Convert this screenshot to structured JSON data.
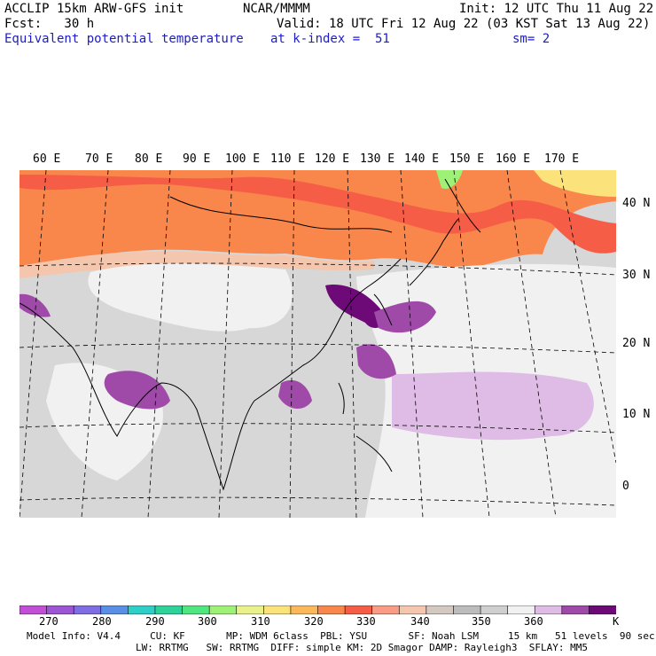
{
  "header": {
    "model": "ACCLIP 15km ARW-GFS init",
    "org": "NCAR/MMMM",
    "init": "Init: 12 UTC Thu 11 Aug 22",
    "fcst": "Fcst:   30 h",
    "valid": "Valid: 18 UTC Fri 12 Aug 22 (03 KST Sat 13 Aug 22)",
    "field": "Equivalent potential temperature",
    "level": "at k-index =  51",
    "smooth": "sm= 2"
  },
  "lon_labels": [
    "60 E",
    "70 E",
    "80 E",
    "90 E",
    "100 E",
    "110 E",
    "120 E",
    "130 E",
    "140 E",
    "150 E",
    "160 E",
    "170 E"
  ],
  "lat_labels": [
    "40 N",
    "30 N",
    "20 N",
    "10 N",
    "0"
  ],
  "colorbar": {
    "colors": [
      "#c24fd8",
      "#9c55d4",
      "#7f6ee4",
      "#5a8fe6",
      "#2ecfc7",
      "#2ed39a",
      "#4fe67f",
      "#9df276",
      "#e9f28a",
      "#fbe27a",
      "#fbb85a",
      "#f9874b",
      "#f65d47",
      "#fa9b85",
      "#f5c6ae",
      "#d3c9c1",
      "#bcbcbc",
      "#cfcfcf",
      "#f1f1f1",
      "#dfbce5",
      "#9f4aa8",
      "#6e0a78"
    ],
    "ticks": [
      "270",
      "280",
      "290",
      "300",
      "310",
      "320",
      "330",
      "340",
      "350",
      "360"
    ],
    "unit": "K"
  },
  "footer": {
    "line1": "Model Info: V4.4     CU: KF       MP: WDM 6class  PBL: YSU       SF: Noah LSM     15 km   51 levels  90 sec",
    "line2": "LW: RRTMG   SW: RRTMG  DIFF: simple KM: 2D Smagor DAMP: Rayleigh3  SFLAY: MM5"
  }
}
